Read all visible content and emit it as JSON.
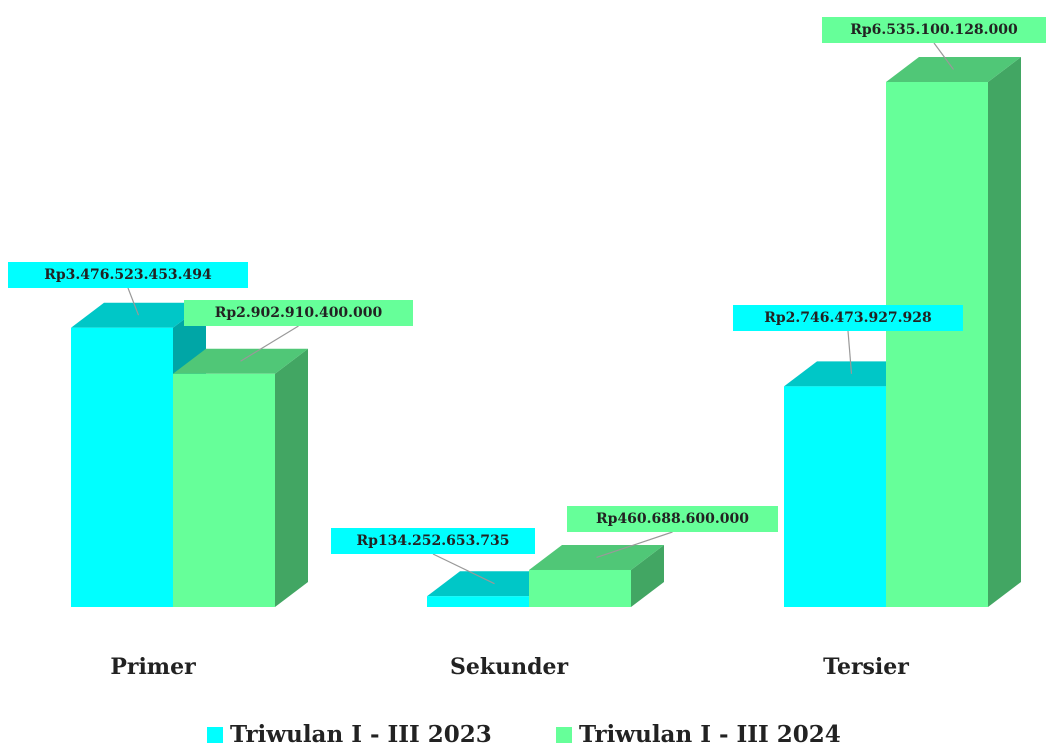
{
  "chart_data": {
    "type": "bar3d",
    "categories": [
      "Primer",
      "Sekunder",
      "Tersier"
    ],
    "series": [
      {
        "name": "Triwulan I - III 2023",
        "color": "#00ffff",
        "values": [
          3476523453494,
          134252653735,
          2746473927928
        ],
        "value_labels": [
          "Rp3.476.523.453.494",
          "Rp134.252.653.735",
          "Rp2.746.473.927.928"
        ]
      },
      {
        "name": "Triwulan I - III 2024",
        "color": "#66ff99",
        "values": [
          2902910400000,
          460688600000,
          6535100128000
        ],
        "value_labels": [
          "Rp2.902.910.400.000",
          "Rp460.688.600.000",
          "Rp6.535.100.128.000"
        ]
      }
    ]
  }
}
